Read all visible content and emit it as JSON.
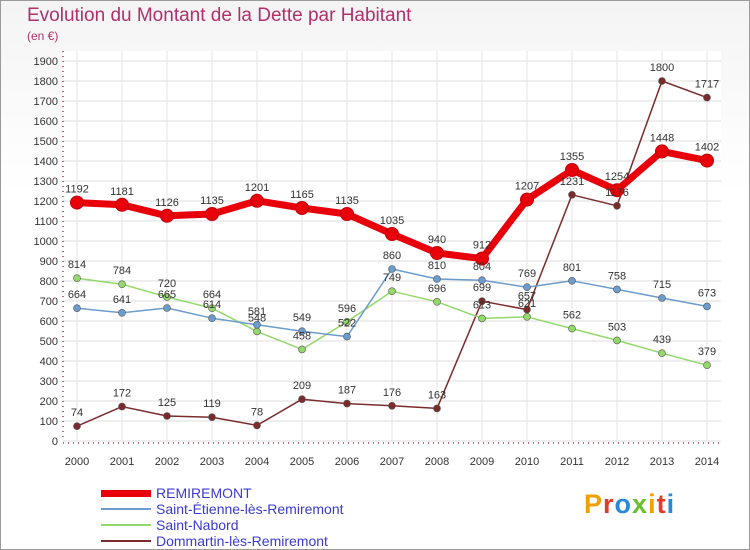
{
  "header": {
    "title": "Evolution du Montant de la Dette par Habitant",
    "unit": "(en €)"
  },
  "logo": {
    "text": "Proxiti",
    "colors": [
      "#f0a000",
      "#e23b2a",
      "#2a8ad8",
      "#6cbf2a",
      "#f0a000",
      "#e23b2a",
      "#2a8ad8"
    ]
  },
  "chart_data": {
    "type": "line",
    "title": "Evolution du Montant de la Dette par Habitant",
    "ylabel": "(en €)",
    "xlabel": "",
    "x": [
      "2000",
      "2001",
      "2002",
      "2003",
      "2004",
      "2005",
      "2006",
      "2007",
      "2008",
      "2009",
      "2010",
      "2011",
      "2012",
      "2013",
      "2014"
    ],
    "ylim": [
      0,
      1900
    ],
    "yticks": [
      0,
      100,
      200,
      300,
      400,
      500,
      600,
      700,
      800,
      900,
      1000,
      1100,
      1200,
      1300,
      1400,
      1500,
      1600,
      1700,
      1800,
      1900
    ],
    "grid": true,
    "legend_position": "bottom-left",
    "series": [
      {
        "name": "REMIREMONT",
        "color": "#e8000b",
        "values": [
          1192,
          1181,
          1126,
          1135,
          1201,
          1165,
          1135,
          1035,
          940,
          912,
          1207,
          1355,
          1254,
          1448,
          1402
        ]
      },
      {
        "name": "Saint-Étienne-lès-Remiremont",
        "color": "#6c9ccc",
        "values": [
          664,
          641,
          665,
          614,
          581,
          549,
          522,
          860,
          810,
          804,
          769,
          801,
          758,
          715,
          673
        ]
      },
      {
        "name": "Saint-Nabord",
        "color": "#93d86a",
        "values": [
          814,
          784,
          720,
          664,
          548,
          458,
          596,
          749,
          696,
          613,
          621,
          562,
          503,
          439,
          379
        ]
      },
      {
        "name": "Dommartin-lès-Remiremont",
        "color": "#7a2c2c",
        "values": [
          74,
          172,
          125,
          119,
          78,
          209,
          187,
          176,
          163,
          699,
          657,
          1231,
          1176,
          1800,
          1717
        ]
      }
    ]
  }
}
